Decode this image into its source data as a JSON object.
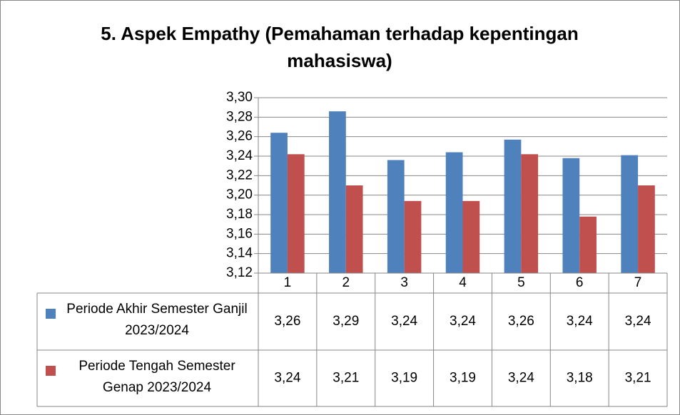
{
  "chart_data": {
    "type": "bar",
    "title": "5. Aspek Empathy (Pemahaman terhadap kepentingan mahasiswa)",
    "categories": [
      "1",
      "2",
      "3",
      "4",
      "5",
      "6",
      "7"
    ],
    "series": [
      {
        "name": "Periode Akhir Semester Ganjil 2023/2024",
        "color": "#4f81bd",
        "values": [
          3.264,
          3.286,
          3.236,
          3.244,
          3.257,
          3.238,
          3.241
        ],
        "value_labels": [
          "3,26",
          "3,29",
          "3,24",
          "3,24",
          "3,26",
          "3,24",
          "3,24"
        ]
      },
      {
        "name": "Periode Tengah Semester Genap 2023/2024",
        "color": "#c0504d",
        "values": [
          3.242,
          3.21,
          3.194,
          3.194,
          3.242,
          3.178,
          3.21
        ],
        "value_labels": [
          "3,24",
          "3,21",
          "3,19",
          "3,19",
          "3,24",
          "3,18",
          "3,21"
        ]
      }
    ],
    "ylim": [
      3.12,
      3.3
    ],
    "yticks": [
      {
        "value": 3.12,
        "label": "3,12"
      },
      {
        "value": 3.14,
        "label": "3,14"
      },
      {
        "value": 3.16,
        "label": "3,16"
      },
      {
        "value": 3.18,
        "label": "3,18"
      },
      {
        "value": 3.2,
        "label": "3,20"
      },
      {
        "value": 3.22,
        "label": "3,22"
      },
      {
        "value": 3.24,
        "label": "3,24"
      },
      {
        "value": 3.26,
        "label": "3,26"
      },
      {
        "value": 3.28,
        "label": "3,28"
      },
      {
        "value": 3.3,
        "label": "3,30"
      }
    ],
    "grid": true
  }
}
